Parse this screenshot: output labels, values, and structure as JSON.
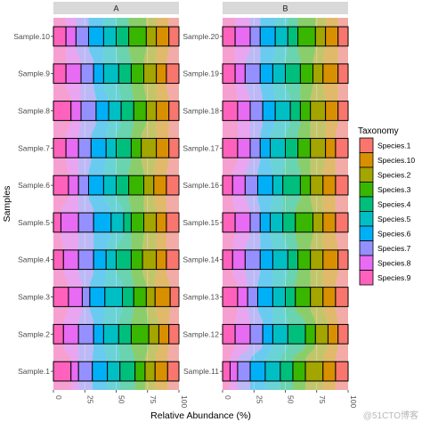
{
  "chart_data": {
    "type": "bar",
    "orientation": "horizontal",
    "stacked": true,
    "title": "",
    "xlabel": "Relative Abundance (%)",
    "ylabel": "Samples",
    "xlim": [
      0,
      100
    ],
    "x_ticks": [
      "0",
      "25",
      "50",
      "75",
      "100"
    ],
    "legend_title": "Taxonomy",
    "legend_position": "right",
    "legend": [
      {
        "name": "Species.1",
        "color": "#F8766D"
      },
      {
        "name": "Species.10",
        "color": "#D89000"
      },
      {
        "name": "Species.2",
        "color": "#A3A500"
      },
      {
        "name": "Species.3",
        "color": "#39B600"
      },
      {
        "name": "Species.4",
        "color": "#00BF7D"
      },
      {
        "name": "Species.5",
        "color": "#00BFC4"
      },
      {
        "name": "Species.6",
        "color": "#00B0F6"
      },
      {
        "name": "Species.7",
        "color": "#9590FF"
      },
      {
        "name": "Species.8",
        "color": "#E76BF3"
      },
      {
        "name": "Species.9",
        "color": "#FF62BC"
      }
    ],
    "stack_order": [
      "Species.9",
      "Species.8",
      "Species.7",
      "Species.6",
      "Species.5",
      "Species.4",
      "Species.3",
      "Species.2",
      "Species.10",
      "Species.1"
    ],
    "panels": [
      {
        "strip": "A",
        "samples": [
          {
            "label": "Sample.1",
            "values": [
              14,
              6,
              11,
              12,
              10,
              12,
              8,
              8,
              10,
              9
            ]
          },
          {
            "label": "Sample.2",
            "values": [
              8,
              12,
              12,
              8,
              12,
              10,
              14,
              8,
              8,
              8
            ]
          },
          {
            "label": "Sample.3",
            "values": [
              12,
              11,
              6,
              12,
              14,
              9,
              10,
              7,
              12,
              7
            ]
          },
          {
            "label": "Sample.4",
            "values": [
              8,
              12,
              12,
              10,
              8,
              12,
              9,
              11,
              8,
              10
            ]
          },
          {
            "label": "Sample.5",
            "values": [
              6,
              14,
              12,
              14,
              10,
              6,
              10,
              10,
              8,
              10
            ]
          },
          {
            "label": "Sample.6",
            "values": [
              12,
              8,
              8,
              12,
              10,
              10,
              12,
              8,
              10,
              10
            ]
          },
          {
            "label": "Sample.7",
            "values": [
              10,
              10,
              10,
              12,
              8,
              12,
              8,
              12,
              10,
              8
            ]
          },
          {
            "label": "Sample.8",
            "values": [
              14,
              8,
              12,
              10,
              10,
              10,
              10,
              8,
              10,
              8
            ]
          },
          {
            "label": "Sample.9",
            "values": [
              10,
              12,
              10,
              8,
              12,
              10,
              10,
              10,
              8,
              10
            ]
          },
          {
            "label": "Sample.10",
            "values": [
              10,
              8,
              10,
              12,
              10,
              10,
              14,
              8,
              10,
              8
            ]
          }
        ]
      },
      {
        "strip": "B",
        "samples": [
          {
            "label": "Sample.11",
            "values": [
              6,
              6,
              10,
              12,
              12,
              10,
              10,
              14,
              10,
              10
            ]
          },
          {
            "label": "Sample.12",
            "values": [
              10,
              12,
              10,
              8,
              12,
              14,
              8,
              10,
              8,
              8
            ]
          },
          {
            "label": "Sample.13",
            "values": [
              12,
              8,
              8,
              12,
              10,
              8,
              12,
              10,
              10,
              10
            ]
          },
          {
            "label": "Sample.14",
            "values": [
              8,
              10,
              12,
              10,
              12,
              8,
              10,
              10,
              12,
              8
            ]
          },
          {
            "label": "Sample.15",
            "values": [
              10,
              12,
              8,
              8,
              10,
              10,
              14,
              8,
              10,
              10
            ]
          },
          {
            "label": "Sample.16",
            "values": [
              8,
              10,
              10,
              12,
              8,
              14,
              8,
              10,
              10,
              10
            ]
          },
          {
            "label": "Sample.17",
            "values": [
              12,
              10,
              8,
              8,
              12,
              10,
              10,
              12,
              8,
              10
            ]
          },
          {
            "label": "Sample.18",
            "values": [
              12,
              10,
              10,
              10,
              12,
              8,
              8,
              12,
              10,
              8
            ]
          },
          {
            "label": "Sample.19",
            "values": [
              10,
              8,
              12,
              10,
              10,
              12,
              10,
              8,
              12,
              8
            ]
          },
          {
            "label": "Sample.20",
            "values": [
              10,
              12,
              8,
              12,
              10,
              8,
              14,
              8,
              10,
              8
            ]
          }
        ]
      }
    ]
  },
  "watermark": "@51CTO博客"
}
